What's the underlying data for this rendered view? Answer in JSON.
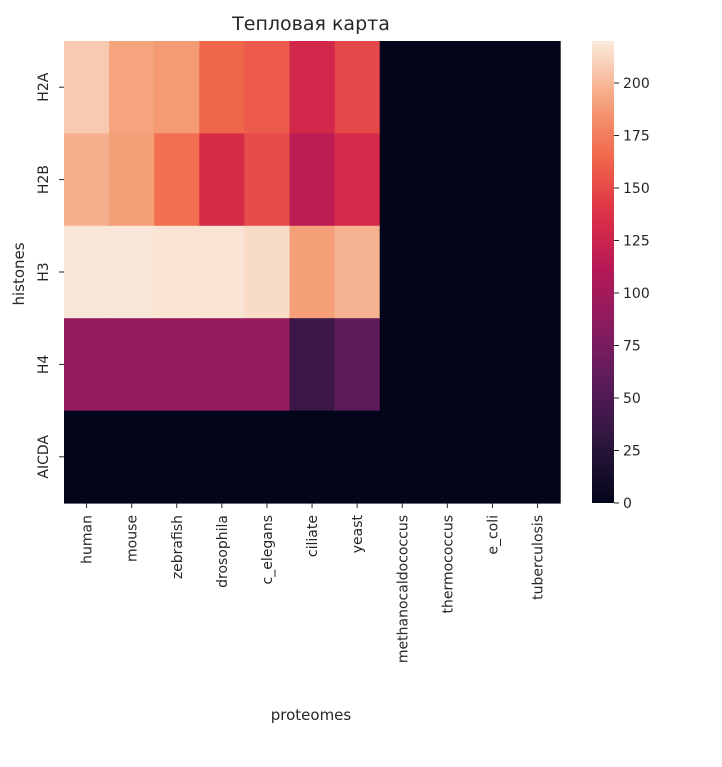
{
  "chart_data": {
    "type": "heatmap",
    "title": "Тепловая карта",
    "xlabel": "proteomes",
    "ylabel": "histones",
    "x_categories": [
      "human",
      "mouse",
      "zebrafish",
      "drosophila",
      "c_elegans",
      "ciliate",
      "yeast",
      "methanocaldococcus",
      "thermococcus",
      "e_coli",
      "tuberculosis"
    ],
    "y_categories": [
      "H2A",
      "H2B",
      "H3",
      "H4",
      "AICDA"
    ],
    "values": [
      [
        207,
        192,
        188,
        164,
        158,
        128,
        149,
        0,
        0,
        0,
        0
      ],
      [
        197,
        190,
        168,
        132,
        151,
        115,
        131,
        0,
        0,
        0,
        0
      ],
      [
        218,
        218,
        217,
        217,
        214,
        190,
        198,
        0,
        0,
        0,
        0
      ],
      [
        92,
        92,
        92,
        92,
        92,
        38,
        59,
        0,
        0,
        0,
        0
      ],
      [
        0,
        0,
        0,
        0,
        0,
        0,
        0,
        0,
        0,
        0,
        0
      ]
    ],
    "colorbar": {
      "range": [
        0,
        220
      ],
      "ticks": [
        "0",
        "25",
        "50",
        "75",
        "100",
        "125",
        "150",
        "175",
        "200"
      ],
      "colormap": "rocket"
    }
  }
}
